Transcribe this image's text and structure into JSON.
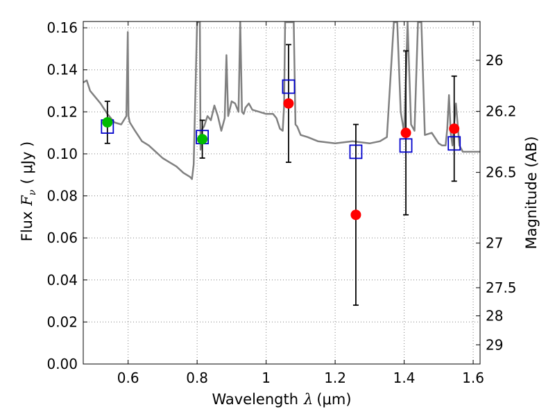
{
  "chart_data": {
    "type": "scatter",
    "xlabel_text": "Wavelength",
    "xlabel_symbol": "λ",
    "xlabel_unit": "(μm)",
    "ylabel_prefix": "Flux",
    "ylabel_symbol": "F",
    "ylabel_subscript": "ν",
    "ylabel_unit": "( μJy )",
    "y2label": "Magnitude (AB)",
    "xlim": [
      0.47,
      1.62
    ],
    "ylim": [
      0.0,
      0.163
    ],
    "xticks": [
      0.6,
      0.8,
      1.0,
      1.2,
      1.4,
      1.6
    ],
    "xtick_labels": [
      "0.6",
      "0.8",
      "1",
      "1.2",
      "1.4",
      "1.6"
    ],
    "yticks": [
      0.0,
      0.02,
      0.04,
      0.06,
      0.08,
      0.1,
      0.12,
      0.14,
      0.16
    ],
    "ytick_labels": [
      "0.00",
      "0.02",
      "0.04",
      "0.06",
      "0.08",
      "0.10",
      "0.12",
      "0.14",
      "0.16"
    ],
    "y2ticks": [
      26,
      26.2,
      26.5,
      27,
      27.5,
      28,
      29
    ],
    "y2tick_labels": [
      "26",
      "26.2",
      "26.5",
      "27",
      "27.5",
      "28",
      "29"
    ],
    "grid": true,
    "colors": {
      "spectrum": "#808080",
      "model": "#0000cc",
      "green": "#00bb00",
      "red": "#ff0000",
      "errorbar": "#000000"
    },
    "series": [
      {
        "name": "template spectrum",
        "kind": "line",
        "x": [
          0.47,
          0.48,
          0.49,
          0.5,
          0.52,
          0.54,
          0.56,
          0.58,
          0.595,
          0.599,
          0.601,
          0.605,
          0.62,
          0.64,
          0.66,
          0.68,
          0.7,
          0.72,
          0.74,
          0.76,
          0.78,
          0.785,
          0.79,
          0.8,
          0.808,
          0.81,
          0.815,
          0.82,
          0.83,
          0.84,
          0.85,
          0.86,
          0.87,
          0.88,
          0.885,
          0.89,
          0.9,
          0.91,
          0.92,
          0.925,
          0.93,
          0.935,
          0.94,
          0.95,
          0.96,
          0.98,
          1.0,
          1.02,
          1.03,
          1.04,
          1.048,
          1.052,
          1.055,
          1.06,
          1.065,
          1.07,
          1.075,
          1.08,
          1.085,
          1.09,
          1.1,
          1.12,
          1.15,
          1.2,
          1.25,
          1.3,
          1.33,
          1.35,
          1.37,
          1.38,
          1.39,
          1.4,
          1.41,
          1.42,
          1.43,
          1.44,
          1.45,
          1.46,
          1.48,
          1.5,
          1.51,
          1.52,
          1.525,
          1.53,
          1.535,
          1.54,
          1.55,
          1.56,
          1.57,
          1.58,
          1.6,
          1.62
        ],
        "y": [
          0.134,
          0.135,
          0.13,
          0.128,
          0.124,
          0.119,
          0.115,
          0.114,
          0.118,
          0.158,
          0.118,
          0.115,
          0.111,
          0.106,
          0.104,
          0.101,
          0.098,
          0.096,
          0.094,
          0.091,
          0.089,
          0.088,
          0.095,
          0.17,
          0.17,
          0.102,
          0.112,
          0.113,
          0.118,
          0.116,
          0.123,
          0.118,
          0.111,
          0.117,
          0.147,
          0.118,
          0.125,
          0.124,
          0.12,
          0.17,
          0.12,
          0.119,
          0.122,
          0.124,
          0.121,
          0.12,
          0.119,
          0.119,
          0.117,
          0.112,
          0.111,
          0.123,
          0.17,
          0.17,
          0.17,
          0.17,
          0.17,
          0.17,
          0.114,
          0.113,
          0.109,
          0.108,
          0.106,
          0.105,
          0.106,
          0.105,
          0.106,
          0.108,
          0.17,
          0.17,
          0.12,
          0.11,
          0.17,
          0.114,
          0.111,
          0.17,
          0.17,
          0.109,
          0.11,
          0.105,
          0.104,
          0.104,
          0.112,
          0.128,
          0.11,
          0.104,
          0.124,
          0.104,
          0.101,
          0.101,
          0.101,
          0.101
        ]
      },
      {
        "name": "model photometry",
        "kind": "open-square",
        "x": [
          0.54,
          0.815,
          1.065,
          1.26,
          1.405,
          1.545
        ],
        "y": [
          0.113,
          0.108,
          0.132,
          0.101,
          0.104,
          0.105
        ]
      },
      {
        "name": "detections",
        "kind": "filled-circle-green",
        "x": [
          0.54,
          0.815
        ],
        "y": [
          0.115,
          0.107
        ]
      },
      {
        "name": "photometry with errors",
        "kind": "filled-circle-red",
        "x": [
          1.065,
          1.26,
          1.405,
          1.545
        ],
        "y": [
          0.124,
          0.071,
          0.11,
          0.112
        ]
      }
    ],
    "errorbars": [
      {
        "x": 0.54,
        "y": 0.115,
        "low": 0.105,
        "high": 0.125
      },
      {
        "x": 0.815,
        "y": 0.107,
        "low": 0.098,
        "high": 0.116
      },
      {
        "x": 1.065,
        "y": 0.124,
        "low": 0.096,
        "high": 0.152
      },
      {
        "x": 1.26,
        "y": 0.071,
        "low": 0.028,
        "high": 0.114
      },
      {
        "x": 1.405,
        "y": 0.11,
        "low": 0.071,
        "high": 0.149
      },
      {
        "x": 1.545,
        "y": 0.112,
        "low": 0.087,
        "high": 0.137
      }
    ]
  }
}
